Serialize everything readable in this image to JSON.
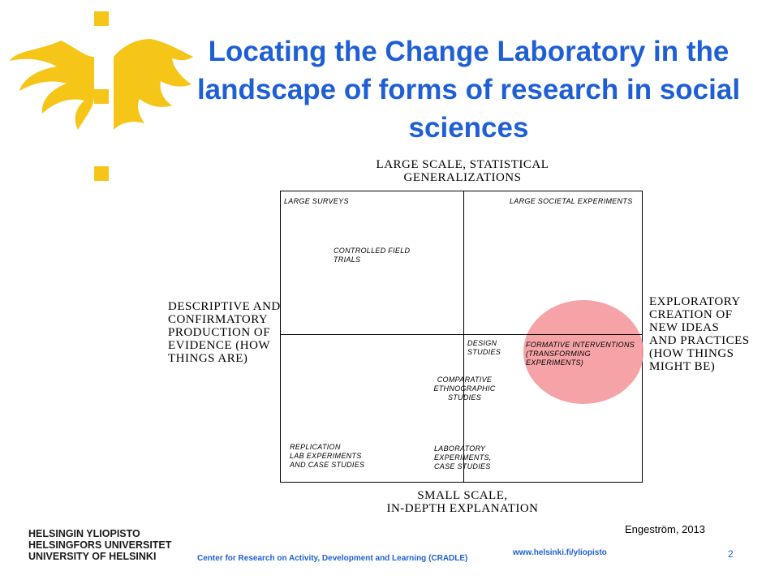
{
  "slide": {
    "title": "Locating the Change Laboratory in the landscape of forms of research in social sciences"
  },
  "diagram": {
    "axis_top": "LARGE SCALE, STATISTICAL\nGENERALIZATIONS",
    "axis_bottom": "SMALL SCALE,\nIN-DEPTH EXPLANATION",
    "axis_left": "DESCRIPTIVE AND\nCONFIRMATORY\nPRODUCTION OF\nEVIDENCE (HOW\nTHINGS ARE)",
    "axis_right": "EXPLORATORY\nCREATION OF\nNEW IDEAS\nAND PRACTICES\n(HOW THINGS\nMIGHT BE)",
    "items": {
      "large_surveys": "LARGE SURVEYS",
      "large_societal": "LARGE SOCIETAL EXPERIMENTS",
      "controlled_field": "CONTROLLED FIELD\nTRIALS",
      "design_studies": "DESIGN\nSTUDIES",
      "formative": "FORMATIVE INTERVENTIONS\n(TRANSFORMING\nEXPERIMENTS)",
      "comparative": "COMPARATIVE\nETHNOGRAPHIC\nSTUDIES",
      "replication": "REPLICATION\nLAB EXPERIMENTS\nAND CASE STUDIES",
      "laboratory": "LABORATORY\nEXPERIMENTS,\nCASE STUDIES"
    },
    "highlight_color": "#f4999c",
    "citation": "Engeström, 2013"
  },
  "footer": {
    "university_names": "HELSINGIN YLIOPISTO\nHELSINGFORS UNIVERSITET\nUNIVERSITY OF HELSINKI",
    "center_name": "Center for Research on Activity, Development and Learning (CRADLE)",
    "url": "www.helsinki.fi/yliopisto",
    "page_number": "2"
  },
  "colors": {
    "title_blue": "#1f5fd6",
    "logo_yellow": "#f5c518"
  }
}
